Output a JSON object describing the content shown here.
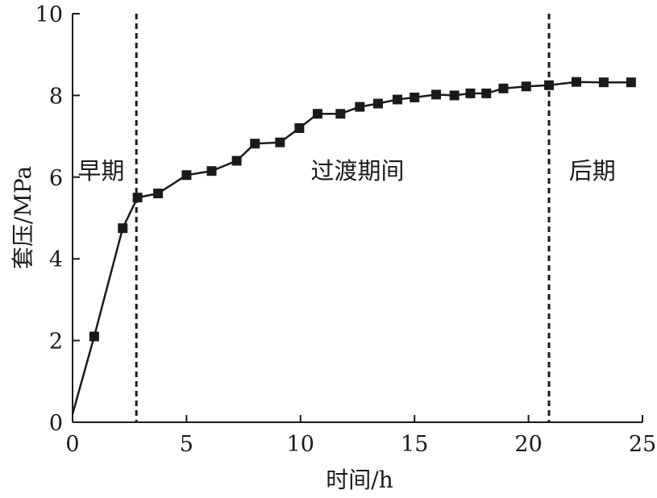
{
  "chart_data": {
    "type": "line",
    "xlabel": "时间/h",
    "ylabel": "套压/MPa",
    "xlim": [
      0,
      25
    ],
    "ylim": [
      0,
      10
    ],
    "xticks": [
      0,
      5,
      10,
      15,
      20,
      25
    ],
    "yticks": [
      0,
      2,
      4,
      6,
      8,
      10
    ],
    "xtick_labels": [
      "0",
      "5",
      "10",
      "15",
      "20",
      "25"
    ],
    "ytick_labels": [
      "0",
      "2",
      "4",
      "6",
      "8",
      "10"
    ],
    "grid": false,
    "series": [
      {
        "color": "#1a1a1a",
        "marker": "square",
        "points": [
          {
            "x": 0.0,
            "y": 0.2,
            "marker": false
          },
          {
            "x": 0.95,
            "y": 2.1
          },
          {
            "x": 2.2,
            "y": 4.75
          },
          {
            "x": 2.85,
            "y": 5.5
          },
          {
            "x": 3.75,
            "y": 5.6
          },
          {
            "x": 5.0,
            "y": 6.05
          },
          {
            "x": 6.1,
            "y": 6.15
          },
          {
            "x": 7.2,
            "y": 6.4
          },
          {
            "x": 8.0,
            "y": 6.82
          },
          {
            "x": 9.1,
            "y": 6.85
          },
          {
            "x": 9.95,
            "y": 7.2
          },
          {
            "x": 10.75,
            "y": 7.55
          },
          {
            "x": 11.75,
            "y": 7.55
          },
          {
            "x": 12.6,
            "y": 7.72
          },
          {
            "x": 13.4,
            "y": 7.8
          },
          {
            "x": 14.25,
            "y": 7.9
          },
          {
            "x": 15.0,
            "y": 7.95
          },
          {
            "x": 15.95,
            "y": 8.02
          },
          {
            "x": 16.75,
            "y": 8.0
          },
          {
            "x": 17.45,
            "y": 8.05
          },
          {
            "x": 18.15,
            "y": 8.05
          },
          {
            "x": 18.9,
            "y": 8.17
          },
          {
            "x": 19.9,
            "y": 8.22
          },
          {
            "x": 20.9,
            "y": 8.25
          },
          {
            "x": 22.1,
            "y": 8.33
          },
          {
            "x": 23.3,
            "y": 8.32
          },
          {
            "x": 24.5,
            "y": 8.32
          }
        ]
      }
    ],
    "vlines": [
      {
        "x": 2.8,
        "style": "dashed"
      },
      {
        "x": 20.9,
        "style": "dashed"
      }
    ],
    "phase_labels": [
      {
        "text": "早期",
        "x": 1.25,
        "y": 6.15
      },
      {
        "text": "过渡期间",
        "x": 12.5,
        "y": 6.15
      },
      {
        "text": "后期",
        "x": 22.8,
        "y": 6.15
      }
    ]
  }
}
